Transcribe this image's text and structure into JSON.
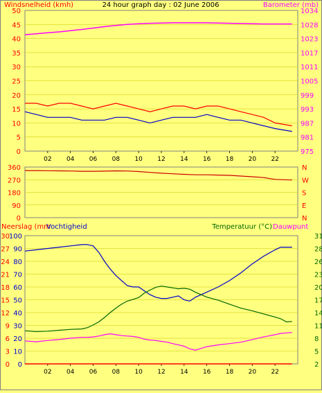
{
  "title": "24 hour graph day : 02 June 2006",
  "colors": {
    "background": "#ffff80",
    "wind_gust": "#ff0000",
    "wind_avg": "#0000cc",
    "barometer": "#ff00ff",
    "direction": "#cc0000",
    "humidity": "#0000cc",
    "temperature": "#006600",
    "dewpoint": "#ff00ff",
    "rain": "#ff0000"
  },
  "chart_data": [
    {
      "type": "line",
      "panel": "wind-barometer",
      "left_axis_label": "Windsnelheid (kmh)",
      "right_axis_label": "Barometer (mb)",
      "x_ticks": [
        "02",
        "04",
        "06",
        "08",
        "10",
        "12",
        "14",
        "16",
        "18",
        "20",
        "22"
      ],
      "left_ticks": [
        "0",
        "5",
        "10",
        "15",
        "20",
        "25",
        "30",
        "35",
        "40",
        "45",
        "50"
      ],
      "right_ticks": [
        "975",
        "981",
        "987",
        "993",
        "999",
        "1005",
        "1011",
        "1017",
        "1023",
        "1028",
        "1034"
      ],
      "x_range": [
        0,
        24
      ],
      "left_range": [
        0,
        50
      ],
      "right_range": [
        975,
        1034
      ],
      "x": [
        0,
        1,
        2,
        3,
        4,
        5,
        6,
        7,
        8,
        9,
        10,
        11,
        12,
        13,
        14,
        15,
        16,
        17,
        18,
        19,
        20,
        21,
        22,
        23.5
      ],
      "series": [
        {
          "axis": "left",
          "values": [
            17,
            17,
            16,
            17,
            17,
            16,
            15,
            16,
            17,
            16,
            15,
            14,
            15,
            16,
            16,
            15,
            16,
            16,
            15,
            14,
            13,
            12,
            10,
            9
          ]
        },
        {
          "axis": "left",
          "values": [
            14,
            13,
            12,
            12,
            12,
            11,
            11,
            11,
            12,
            12,
            11,
            10,
            11,
            12,
            12,
            12,
            13,
            12,
            11,
            11,
            10,
            9,
            8,
            7
          ]
        },
        {
          "axis": "right",
          "values": [
            1023.8,
            1024.2,
            1024.6,
            1025.0,
            1025.5,
            1026.0,
            1026.6,
            1027.2,
            1027.7,
            1028.1,
            1028.4,
            1028.6,
            1028.7,
            1028.8,
            1028.8,
            1028.8,
            1028.8,
            1028.7,
            1028.6,
            1028.5,
            1028.4,
            1028.3,
            1028.3,
            1028.3
          ]
        }
      ]
    },
    {
      "type": "line",
      "panel": "wind-direction",
      "left_ticks": [
        "360",
        "270",
        "180",
        "90",
        "0"
      ],
      "right_ticks": [
        "N",
        "W",
        "S",
        "E",
        "N"
      ],
      "x_range": [
        0,
        24
      ],
      "left_range": [
        0,
        360
      ],
      "x": [
        0,
        1,
        2,
        3,
        4,
        5,
        6,
        7,
        8,
        9,
        10,
        11,
        12,
        13,
        14,
        15,
        16,
        17,
        18,
        19,
        20,
        21,
        22,
        23.5
      ],
      "series": [
        {
          "axis": "left",
          "values": [
            335,
            335,
            334,
            333,
            332,
            330,
            330,
            331,
            333,
            332,
            328,
            322,
            316,
            312,
            308,
            305,
            305,
            303,
            301,
            296,
            291,
            285,
            272,
            268
          ]
        }
      ]
    },
    {
      "type": "line",
      "panel": "humidity-temperature",
      "left_axis_label_rain": "Neerslag (mm",
      "left_axis_label_humidity": "Vochtigheid",
      "right_axis_label_temp": "Temperatuur (°C)",
      "right_axis_label_dew": "Dauwpunt",
      "x_ticks": [
        "02",
        "04",
        "06",
        "08",
        "10",
        "12",
        "14",
        "16",
        "18",
        "20",
        "22"
      ],
      "left_ticks_rain": [
        "0",
        "3",
        "6",
        "9",
        "12",
        "15",
        "18",
        "21",
        "24",
        "27",
        "30"
      ],
      "left_ticks_humidity": [
        "0",
        "10",
        "20",
        "30",
        "40",
        "50",
        "60",
        "70",
        "80",
        "90",
        "100"
      ],
      "right_ticks": [
        "2",
        "5",
        "8",
        "11",
        "14",
        "17",
        "20",
        "23",
        "26",
        "28",
        "31"
      ],
      "x_range": [
        0,
        24
      ],
      "left_range": [
        0,
        100
      ],
      "right_range": [
        2,
        31
      ],
      "x": [
        0,
        1,
        2,
        3,
        4,
        5,
        5.5,
        6,
        6.5,
        7,
        7.5,
        8,
        8.5,
        9,
        9.5,
        10,
        10.5,
        11,
        11.5,
        12,
        12.5,
        13,
        13.5,
        14,
        14.5,
        15,
        16,
        17,
        18,
        19,
        20,
        21,
        22,
        22.5,
        23,
        23.5
      ],
      "series": [
        {
          "axis": "left",
          "values": [
            88,
            89,
            90,
            91,
            92,
            93,
            93,
            92,
            87,
            80,
            74,
            69,
            65,
            61,
            60,
            60,
            57,
            54,
            52,
            51,
            51,
            52,
            53,
            50,
            49,
            52,
            56,
            60,
            65,
            71,
            78,
            84,
            89,
            91,
            91,
            91
          ]
        },
        {
          "axis": "right",
          "values": [
            9.5,
            9.3,
            9.4,
            9.6,
            9.8,
            9.9,
            10.2,
            10.8,
            11.5,
            12.5,
            13.6,
            14.6,
            15.5,
            16.2,
            16.6,
            17.0,
            18.0,
            18.7,
            19.3,
            19.6,
            19.4,
            19.2,
            19.0,
            19.1,
            18.9,
            18.2,
            17.1,
            16.4,
            15.5,
            14.6,
            14.0,
            13.3,
            12.6,
            12.2,
            11.5,
            11.6
          ]
        },
        {
          "axis": "right",
          "values": [
            7.2,
            7.0,
            7.3,
            7.5,
            7.8,
            8.0,
            8.0,
            8.1,
            8.3,
            8.6,
            8.8,
            8.6,
            8.4,
            8.3,
            8.2,
            8.0,
            7.6,
            7.4,
            7.3,
            7.1,
            6.9,
            6.6,
            6.3,
            6.0,
            5.4,
            5.1,
            5.9,
            6.3,
            6.6,
            6.9,
            7.5,
            8.1,
            8.6,
            8.9,
            9.0,
            9.1
          ]
        },
        {
          "axis": "left_rain",
          "values": [
            0,
            0,
            0,
            0,
            0,
            0,
            0,
            0,
            0,
            0,
            0,
            0,
            0,
            0,
            0,
            0,
            0,
            0,
            0,
            0,
            0,
            0,
            0,
            0,
            0,
            0,
            0,
            0,
            0,
            0,
            0,
            0,
            0,
            0,
            0,
            0
          ]
        }
      ]
    }
  ]
}
